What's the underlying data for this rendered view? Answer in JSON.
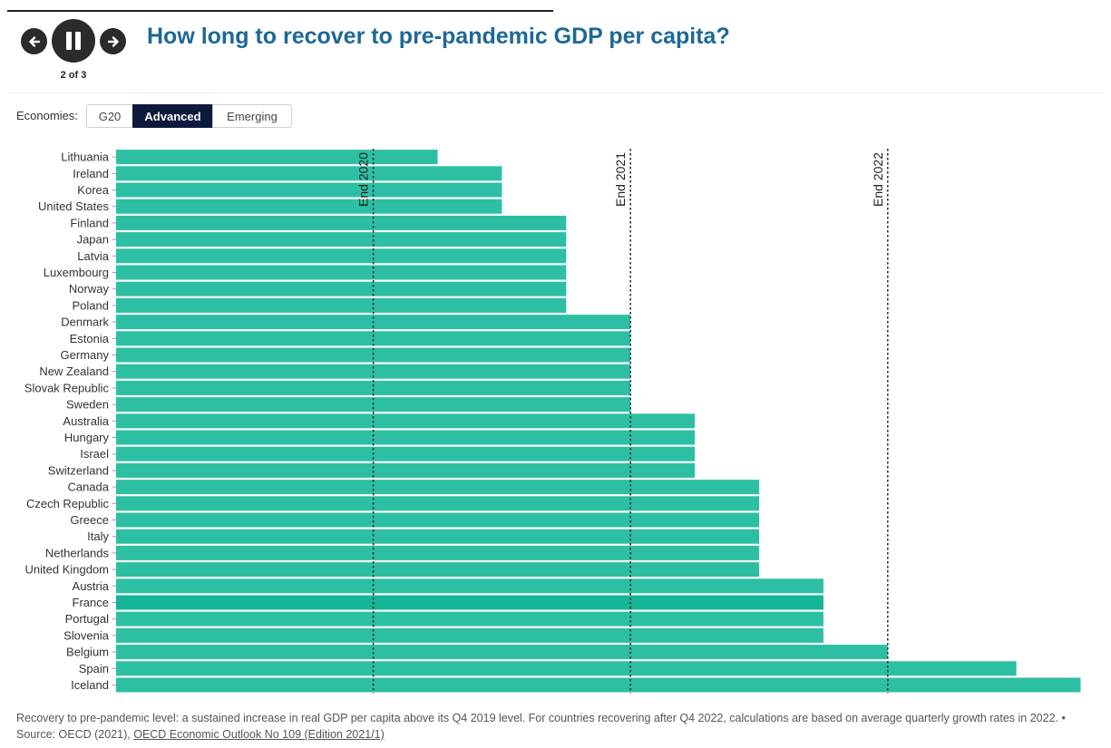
{
  "header": {
    "title": "How long to recover to pre-pandemic GDP per capita?",
    "counter": "2 of 3",
    "icons": {
      "prev": "arrow-left-icon",
      "pause": "pause-icon",
      "next": "arrow-right-icon"
    }
  },
  "filter": {
    "label": "Economies:",
    "options": [
      "G20",
      "Advanced",
      "Emerging"
    ],
    "selected": "Advanced"
  },
  "footer": {
    "note": "Recovery to pre-pandemic level: a sustained increase in real GDP per capita above its Q4 2019 level. For countries recovering after Q4 2022, calculations are based on average quarterly growth rates in 2022. • Source: OECD (2021), ",
    "link_text": "OECD Economic Outlook No 109 (Edition 2021/1)"
  },
  "chart_data": {
    "type": "bar",
    "orientation": "horizontal",
    "x_unit": "quarters after Q4 2019",
    "xlim": [
      0,
      15
    ],
    "categories": [
      "Lithuania",
      "Ireland",
      "Korea",
      "United States",
      "Finland",
      "Japan",
      "Latvia",
      "Luxembourg",
      "Norway",
      "Poland",
      "Denmark",
      "Estonia",
      "Germany",
      "New Zealand",
      "Slovak Republic",
      "Sweden",
      "Australia",
      "Hungary",
      "Israel",
      "Switzerland",
      "Canada",
      "Czech Republic",
      "Greece",
      "Italy",
      "Netherlands",
      "United Kingdom",
      "Austria",
      "France",
      "Portugal",
      "Slovenia",
      "Belgium",
      "Spain",
      "Iceland"
    ],
    "values": [
      5,
      6,
      6,
      6,
      7,
      7,
      7,
      7,
      7,
      7,
      8,
      8,
      8,
      8,
      8,
      8,
      9,
      9,
      9,
      9,
      10,
      10,
      10,
      10,
      10,
      10,
      11,
      11,
      11,
      11,
      12,
      14,
      15
    ],
    "reference_lines": [
      {
        "label": "End 2020",
        "value": 4
      },
      {
        "label": "End 2021",
        "value": 8
      },
      {
        "label": "End 2022",
        "value": 12
      }
    ],
    "highlighted": "France",
    "colors": {
      "bar": "#2dbfa3",
      "highlight": "#16b597",
      "reference": "#333333"
    },
    "grid": false,
    "legend": "none"
  }
}
